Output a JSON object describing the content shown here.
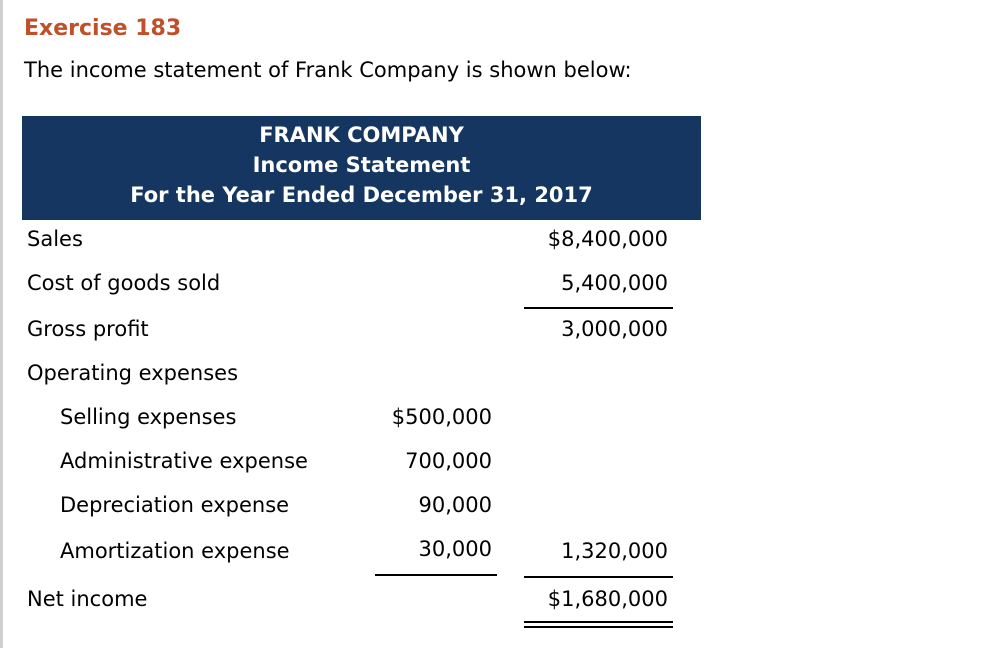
{
  "exercise_title": "Exercise 183",
  "prompt": "The income statement of Frank Company is shown below:",
  "statement_header": {
    "company": "FRANK COMPANY",
    "title": "Income Statement",
    "period": "For the Year Ended December 31, 2017"
  },
  "rows": {
    "sales": {
      "label": "Sales",
      "total": "$8,400,000"
    },
    "cogs": {
      "label": "Cost of goods sold",
      "total": "5,400,000"
    },
    "gross_profit": {
      "label": "Gross profit",
      "total": "3,000,000"
    },
    "operating_expenses": {
      "label": "Operating expenses"
    },
    "selling": {
      "label": "Selling expenses",
      "amount": "$500,000"
    },
    "administrative": {
      "label": "Administrative expense",
      "amount": "700,000"
    },
    "depreciation": {
      "label": "Depreciation expense",
      "amount": "90,000"
    },
    "amortization": {
      "label": "Amortization expense",
      "amount": "30,000",
      "total": "1,320,000"
    },
    "net_income": {
      "label": "Net income",
      "total": "$1,680,000"
    }
  }
}
